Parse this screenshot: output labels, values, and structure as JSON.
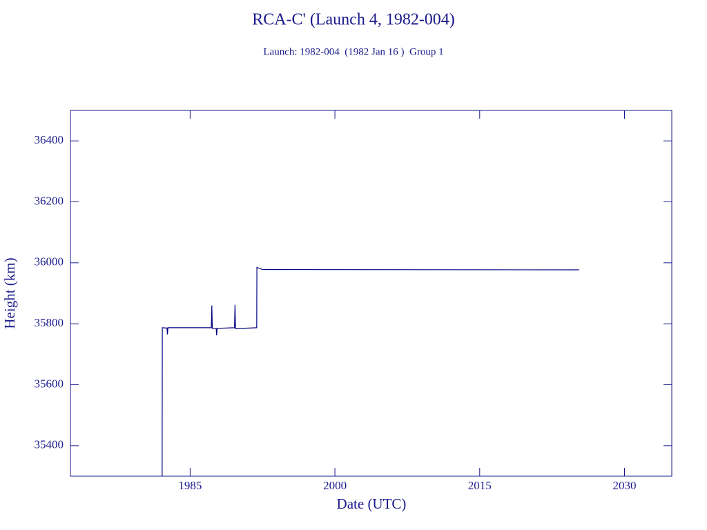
{
  "chart_data": {
    "type": "line",
    "title": "RCA-C' (Launch 4, 1982-004)",
    "subtitle": "Launch: 1982-004  (1982 Jan 16 )  Group 1",
    "x_label": "Date (UTC)",
    "y_label": "Height (km)",
    "x": [
      1982.1,
      1982.12,
      1982.6,
      1982.65,
      1982.7,
      1987.2,
      1987.25,
      1987.3,
      1987.7,
      1987.75,
      1987.8,
      1989.6,
      1989.65,
      1989.7,
      1991.9,
      1991.92,
      1992.5,
      2025.3
    ],
    "series": [
      {
        "name": "Height",
        "color": "#000080",
        "values": [
          35300,
          35787,
          35786,
          35765,
          35787,
          35787,
          35860,
          35785,
          35785,
          35762,
          35785,
          35787,
          35862,
          35784,
          35787,
          35985,
          35978,
          35977
        ]
      }
    ],
    "xlim": [
      1972.6,
      2034.9
    ],
    "xticks": [
      1985,
      2000,
      2015,
      2030
    ],
    "ylim": [
      35300,
      36500
    ],
    "yticks": [
      35400,
      35600,
      35800,
      36000,
      36200,
      36400
    ]
  }
}
